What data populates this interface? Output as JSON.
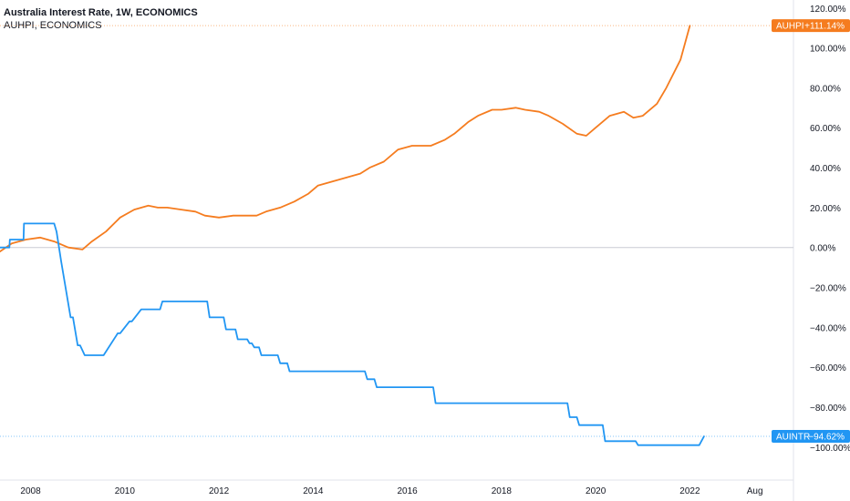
{
  "header": {
    "line1": "Australia Interest Rate, 1W, ECONOMICS",
    "line2": "AUHPI, ECONOMICS"
  },
  "chart_data": {
    "type": "line",
    "title": "Australia Interest Rate, 1W, ECONOMICS",
    "xlabel": "",
    "ylabel": "",
    "xlim": [
      2007.35,
      2024.2
    ],
    "ylim": [
      -116.5,
      124
    ],
    "y_ticks": [
      120,
      100,
      80,
      60,
      40,
      20,
      0,
      -20,
      -40,
      -60,
      -80,
      -100
    ],
    "y_tick_labels": [
      "120.00%",
      "100.00%",
      "80.00%",
      "60.00%",
      "40.00%",
      "20.00%",
      "0.00%",
      "−20.00%",
      "−40.00%",
      "−60.00%",
      "−80.00%",
      "−100.00%"
    ],
    "x_ticks": [
      2008,
      2010,
      2012,
      2014,
      2016,
      2018,
      2020,
      2022,
      2023.38
    ],
    "x_tick_labels": [
      "2008",
      "2010",
      "2012",
      "2014",
      "2016",
      "2018",
      "2020",
      "2022",
      "Aug"
    ],
    "grid": false,
    "zero_line": true,
    "series": [
      {
        "name": "AUHPI",
        "color": "#f57c1f",
        "last_value_label": "+111.14%",
        "x": [
          2007.35,
          2007.6,
          2007.9,
          2008.2,
          2008.5,
          2008.8,
          2009.1,
          2009.3,
          2009.6,
          2009.9,
          2010.2,
          2010.5,
          2010.7,
          2010.9,
          2011.2,
          2011.5,
          2011.7,
          2012.0,
          2012.3,
          2012.5,
          2012.8,
          2013.0,
          2013.3,
          2013.6,
          2013.9,
          2014.1,
          2014.4,
          2014.7,
          2015.0,
          2015.2,
          2015.5,
          2015.8,
          2016.1,
          2016.3,
          2016.5,
          2016.8,
          2017.0,
          2017.3,
          2017.5,
          2017.8,
          2018.0,
          2018.3,
          2018.5,
          2018.8,
          2019.0,
          2019.3,
          2019.6,
          2019.8,
          2020.0,
          2020.3,
          2020.6,
          2020.8,
          2021.0,
          2021.3,
          2021.5,
          2021.8,
          2022.0
        ],
        "y": [
          -2,
          2,
          4,
          5,
          3,
          0,
          -1,
          3,
          8,
          15,
          19,
          21,
          20,
          20,
          19,
          18,
          16,
          15,
          16,
          16,
          16,
          18,
          20,
          23,
          27,
          31,
          33,
          35,
          37,
          40,
          43,
          49,
          51,
          51,
          51,
          54,
          57,
          63,
          66,
          69,
          69,
          70,
          69,
          68,
          66,
          62,
          57,
          56,
          60,
          66,
          68,
          65,
          66,
          72,
          80,
          94,
          111.14
        ]
      },
      {
        "name": "AUINTR",
        "color": "#2196f3",
        "last_value_label": "−94.62%",
        "x": [
          2007.35,
          2007.55,
          2007.56,
          2007.85,
          2007.86,
          2008.5,
          2008.55,
          2008.65,
          2008.85,
          2008.9,
          2009.0,
          2009.05,
          2009.15,
          2009.2,
          2009.55,
          2009.85,
          2009.9,
          2010.1,
          2010.15,
          2010.35,
          2010.4,
          2010.75,
          2010.8,
          2011.75,
          2011.8,
          2012.1,
          2012.15,
          2012.35,
          2012.4,
          2012.6,
          2012.65,
          2012.7,
          2012.75,
          2012.85,
          2012.9,
          2013.25,
          2013.3,
          2013.45,
          2013.5,
          2013.75,
          2013.8,
          2015.1,
          2015.15,
          2015.3,
          2015.35,
          2016.35,
          2016.4,
          2016.55,
          2016.6,
          2019.4,
          2019.45,
          2019.6,
          2019.65,
          2019.8,
          2019.85,
          2020.15,
          2020.2,
          2020.35,
          2020.4,
          2020.85,
          2020.9,
          2022.2,
          2022.3
        ],
        "y": [
          0,
          0,
          4,
          4,
          12,
          12,
          8,
          -7,
          -35,
          -35,
          -49,
          -49,
          -54,
          -54,
          -54,
          -43,
          -43,
          -37,
          -37,
          -31,
          -31,
          -31,
          -27,
          -27,
          -35,
          -35,
          -41,
          -41,
          -46,
          -46,
          -48,
          -48,
          -50,
          -50,
          -54,
          -54,
          -58,
          -58,
          -62,
          -62,
          -62,
          -62,
          -66,
          -66,
          -70,
          -70,
          -70,
          -70,
          -78,
          -78,
          -85,
          -85,
          -89,
          -89,
          -89,
          -89,
          -97,
          -97,
          -97,
          -97,
          -99,
          -99,
          -94.62
        ]
      }
    ]
  }
}
